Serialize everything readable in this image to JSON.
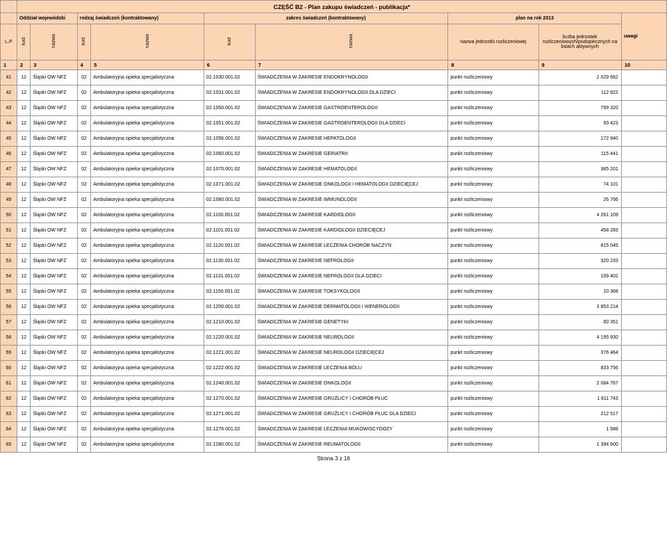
{
  "title": "CZĘŚĆ B2 - Plan zakupu świadczeń - publikacja*",
  "headers": {
    "h1": "Oddział wojewódzki",
    "h2": "rodzaj świadczeń (kontraktowany)",
    "h3": "zakres świadczeń (kontraktowany)",
    "h4": "plan na rok 2013"
  },
  "subheads": {
    "lp": "L.P",
    "kod": "kod",
    "nazwa": "nazwa",
    "jedn": "nazwa jednostki rozliczeniowej",
    "liczba": "liczba jednostek rozliczeniowych/podopiecznych na listach aktywnych",
    "uwagi": "uwagi"
  },
  "colnums": [
    "1",
    "2",
    "3",
    "4",
    "5",
    "6",
    "7",
    "8",
    "9",
    "10"
  ],
  "rows": [
    {
      "lp": "41",
      "k1": "12",
      "n1": "Śląski OW NFZ",
      "k2": "02",
      "n2": "Ambulatoryjna opieka specjalistyczna",
      "k3": "02.1030.001.02",
      "n3": "ŚWIADCZENIA W ZAKRESIE ENDOKRYNOLOGII",
      "jedn": "punkt rozliczeniowy",
      "liczba": "2 029 662",
      "uw": ""
    },
    {
      "lp": "42",
      "k1": "12",
      "n1": "Śląski OW NFZ",
      "k2": "02",
      "n2": "Ambulatoryjna opieka specjalistyczna",
      "k3": "02.1031.001.02",
      "n3": "ŚWIADCZENIA W ZAKRESIE ENDOKRYNOLOGII DLA DZIECI",
      "jedn": "punkt rozliczeniowy",
      "liczba": "112 822",
      "uw": ""
    },
    {
      "lp": "43",
      "k1": "12",
      "n1": "Śląski OW NFZ",
      "k2": "02",
      "n2": "Ambulatoryjna opieka specjalistyczna",
      "k3": "02.1050.001.02",
      "n3": "ŚWIADCZENIA W ZAKRESIE GASTROENTEROLOGII",
      "jedn": "punkt rozliczeniowy",
      "liczba": "799 320",
      "uw": ""
    },
    {
      "lp": "44",
      "k1": "12",
      "n1": "Śląski OW NFZ",
      "k2": "02",
      "n2": "Ambulatoryjna opieka specjalistyczna",
      "k3": "02.1051.001.02",
      "n3": "ŚWIADCZENIA W ZAKRESIE GASTROENTEROLOGII DLA DZIECI",
      "jedn": "punkt rozliczeniowy",
      "liczba": "93 423",
      "uw": ""
    },
    {
      "lp": "45",
      "k1": "12",
      "n1": "Śląski OW NFZ",
      "k2": "02",
      "n2": "Ambulatoryjna opieka specjalistyczna",
      "k3": "02.1056.001.02",
      "n3": "ŚWIADCZENIA W ZAKRESIE HEPATOLOGII",
      "jedn": "punkt rozliczeniowy",
      "liczba": "172 940",
      "uw": ""
    },
    {
      "lp": "46",
      "k1": "12",
      "n1": "Śląski OW NFZ",
      "k2": "02",
      "n2": "Ambulatoryjna opieka specjalistyczna",
      "k3": "02.1060.001.02",
      "n3": "ŚWIADCZENIA W ZAKRESIE GERIATRII",
      "jedn": "punkt rozliczeniowy",
      "liczba": "115 441",
      "uw": ""
    },
    {
      "lp": "47",
      "k1": "12",
      "n1": "Śląski OW NFZ",
      "k2": "02",
      "n2": "Ambulatoryjna opieka specjalistyczna",
      "k3": "02.1070.001.02",
      "n3": "ŚWIADCZENIA W ZAKRESIE HEMATOLOGII",
      "jedn": "punkt rozliczeniowy",
      "liczba": "385 201",
      "uw": ""
    },
    {
      "lp": "48",
      "k1": "12",
      "n1": "Śląski OW NFZ",
      "k2": "02",
      "n2": "Ambulatoryjna opieka specjalistyczna",
      "k3": "02.1071.001.02",
      "n3": "ŚWIADCZENIA W ZAKRESIE ONKOLOGII I HEMATOLOGII DZIECIĘCEJ",
      "jedn": "punkt rozliczeniowy",
      "liczba": "74 101",
      "uw": ""
    },
    {
      "lp": "49",
      "k1": "12",
      "n1": "Śląski OW NFZ",
      "k2": "02",
      "n2": "Ambulatoryjna opieka specjalistyczna",
      "k3": "02.1080.001.02",
      "n3": "ŚWIADCZENIA W ZAKRESIE IMMUNOLOGII",
      "jedn": "punkt rozliczeniowy",
      "liczba": "26 766",
      "uw": ""
    },
    {
      "lp": "50",
      "k1": "12",
      "n1": "Śląski OW NFZ",
      "k2": "02",
      "n2": "Ambulatoryjna opieka specjalistyczna",
      "k3": "02.1100.001.02",
      "n3": "ŚWIADCZENIA W ZAKRESIE KARDIOLOGII",
      "jedn": "punkt rozliczeniowy",
      "liczba": "4 261 109",
      "uw": ""
    },
    {
      "lp": "51",
      "k1": "12",
      "n1": "Śląski OW NFZ",
      "k2": "02",
      "n2": "Ambulatoryjna opieka specjalistyczna",
      "k3": "02.1101.001.02",
      "n3": "ŚWIADCZENIA W ZAKRESIE KARDIOLOGII DZIECIĘCEJ",
      "jedn": "punkt rozliczeniowy",
      "liczba": "458 283",
      "uw": ""
    },
    {
      "lp": "52",
      "k1": "12",
      "n1": "Śląski OW NFZ",
      "k2": "02",
      "n2": "Ambulatoryjna opieka specjalistyczna",
      "k3": "02.1120.001.02",
      "n3": "ŚWIADCZENIA W ZAKRESIE LECZENIA CHORÓB NACZYŃ",
      "jedn": "punkt rozliczeniowy",
      "liczba": "815 045",
      "uw": ""
    },
    {
      "lp": "53",
      "k1": "12",
      "n1": "Śląski OW NFZ",
      "k2": "02",
      "n2": "Ambulatoryjna opieka specjalistyczna",
      "k3": "02.1130.001.02",
      "n3": "ŚWIADCZENIA W ZAKRESIE NEFROLOGII",
      "jedn": "punkt rozliczeniowy",
      "liczba": "320 233",
      "uw": ""
    },
    {
      "lp": "54",
      "k1": "12",
      "n1": "Śląski OW NFZ",
      "k2": "02",
      "n2": "Ambulatoryjna opieka specjalistyczna",
      "k3": "02.1131.001.02",
      "n3": "ŚWIADCZENIA W ZAKRESIE NEFROLOGII DLA DZIECI",
      "jedn": "punkt rozliczeniowy",
      "liczba": "109 402",
      "uw": ""
    },
    {
      "lp": "55",
      "k1": "12",
      "n1": "Śląski OW NFZ",
      "k2": "02",
      "n2": "Ambulatoryjna opieka specjalistyczna",
      "k3": "02.1150.001.02",
      "n3": "ŚWIADCZENIA W ZAKRESIE TOKSYKOLOGII",
      "jedn": "punkt rozliczeniowy",
      "liczba": "10 368",
      "uw": ""
    },
    {
      "lp": "56",
      "k1": "12",
      "n1": "Śląski OW NFZ",
      "k2": "02",
      "n2": "Ambulatoryjna opieka specjalistyczna",
      "k3": "02.1200.001.02",
      "n3": "ŚWIADCZENIA W ZAKRESIE DERMATOLOGII I WENEROLOGII",
      "jedn": "punkt rozliczeniowy",
      "liczba": "3 853 214",
      "uw": ""
    },
    {
      "lp": "57",
      "k1": "12",
      "n1": "Śląski OW NFZ",
      "k2": "02",
      "n2": "Ambulatoryjna opieka specjalistyczna",
      "k3": "02.1210.001.02",
      "n3": "ŚWIADCZENIA W ZAKRESIE GENETYKI",
      "jedn": "punkt rozliczeniowy",
      "liczba": "60 351",
      "uw": ""
    },
    {
      "lp": "58",
      "k1": "12",
      "n1": "Śląski OW NFZ",
      "k2": "02",
      "n2": "Ambulatoryjna opieka specjalistyczna",
      "k3": "02.1220.001.02",
      "n3": "ŚWIADCZENIA W ZAKRESIE NEUROLOGII",
      "jedn": "punkt rozliczeniowy",
      "liczba": "4 195 930",
      "uw": ""
    },
    {
      "lp": "59",
      "k1": "12",
      "n1": "Śląski OW NFZ",
      "k2": "02",
      "n2": "Ambulatoryjna opieka specjalistyczna",
      "k3": "02.1221.001.02",
      "n3": "ŚWIADCZENIA W ZAKRESIE NEUROLOGII DZIECIĘCEJ",
      "jedn": "punkt rozliczeniowy",
      "liczba": "376 464",
      "uw": ""
    },
    {
      "lp": "60",
      "k1": "12",
      "n1": "Śląski OW NFZ",
      "k2": "02",
      "n2": "Ambulatoryjna opieka specjalistyczna",
      "k3": "02.1222.001.02",
      "n3": "ŚWIADCZENIA W ZAKRESIE LECZENIA BÓLU",
      "jedn": "punkt rozliczeniowy",
      "liczba": "833 756",
      "uw": ""
    },
    {
      "lp": "61",
      "k1": "12",
      "n1": "Śląski OW NFZ",
      "k2": "02",
      "n2": "Ambulatoryjna opieka specjalistyczna",
      "k3": "02.1240.001.02",
      "n3": "ŚWIADCZENIA W ZAKRESIE ONKOLOGII",
      "jedn": "punkt rozliczeniowy",
      "liczba": "2 084 767",
      "uw": ""
    },
    {
      "lp": "62",
      "k1": "12",
      "n1": "Śląski OW NFZ",
      "k2": "02",
      "n2": "Ambulatoryjna opieka specjalistyczna",
      "k3": "02.1270.001.02",
      "n3": "ŚWIADCZENIA W ZAKRESIE GRUŹLICY I CHORÓB PŁUC",
      "jedn": "punkt rozliczeniowy",
      "liczba": "1 811 743",
      "uw": ""
    },
    {
      "lp": "63",
      "k1": "12",
      "n1": "Śląski OW NFZ",
      "k2": "02",
      "n2": "Ambulatoryjna opieka specjalistyczna",
      "k3": "02.1271.001.02",
      "n3": "ŚWIADCZENIA W ZAKRESIE GRUŹLICY I CHORÓB PŁUC DLA DZIECI",
      "jedn": "punkt rozliczeniowy",
      "liczba": "212 517",
      "uw": ""
    },
    {
      "lp": "64",
      "k1": "12",
      "n1": "Śląski OW NFZ",
      "k2": "02",
      "n2": "Ambulatoryjna opieka specjalistyczna",
      "k3": "02.1276.001.02",
      "n3": "ŚWIADCZENIA W ZAKRESIE LECZENIA MUKOWISCYDOZY",
      "jedn": "punkt rozliczeniowy",
      "liczba": "1 588",
      "uw": ""
    },
    {
      "lp": "65",
      "k1": "12",
      "n1": "Śląski OW NFZ",
      "k2": "02",
      "n2": "Ambulatoryjna opieka specjalistyczna",
      "k3": "02.1280.001.02",
      "n3": "ŚWIADCZENIA W ZAKRESIE REUMATOLOGII",
      "jedn": "punkt rozliczeniowy",
      "liczba": "1 394 600",
      "uw": ""
    }
  ],
  "pager": "Strona 3 z 16"
}
